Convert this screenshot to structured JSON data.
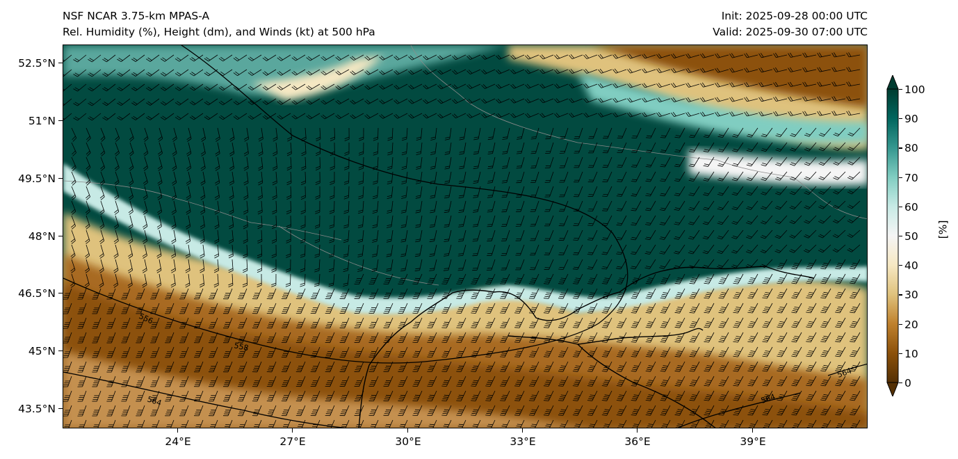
{
  "titles": {
    "left_line1": "NSF NCAR 3.75-km MPAS-A",
    "left_line2": "Rel. Humidity (%), Height (dm), and Winds (kt) at 500 hPa",
    "right_line1": "Init: 2025-09-28 00:00 UTC",
    "right_line2": "Valid: 2025-09-30 07:00 UTC"
  },
  "map": {
    "lon_range": [
      21.0,
      42.0
    ],
    "lat_range": [
      43.0,
      53.0
    ],
    "lat_ticks": [
      "52.5°N",
      "51°N",
      "49.5°N",
      "48°N",
      "46.5°N",
      "45°N",
      "43.5°N"
    ],
    "lat_values": [
      52.5,
      51,
      49.5,
      48,
      46.5,
      45,
      43.5
    ],
    "lon_ticks": [
      "24°E",
      "27°E",
      "30°E",
      "33°E",
      "36°E",
      "39°E"
    ],
    "lon_values": [
      24,
      27,
      30,
      33,
      36,
      39
    ],
    "contour_labels": [
      "556",
      "558",
      "564",
      "564",
      "564"
    ],
    "colors": {
      "rh_100": "#003c30",
      "rh_80": "#35978f",
      "rh_60": "#c7eae5",
      "rh_45": "#f5f5f5",
      "rh_35": "#f6e8c3",
      "rh_20": "#bf812d",
      "rh_0": "#543005"
    }
  },
  "colorbar": {
    "label": "[%]",
    "ticks": [
      "0",
      "10",
      "20",
      "30",
      "40",
      "50",
      "60",
      "70",
      "80",
      "90",
      "100"
    ],
    "min": 0,
    "max": 100
  }
}
